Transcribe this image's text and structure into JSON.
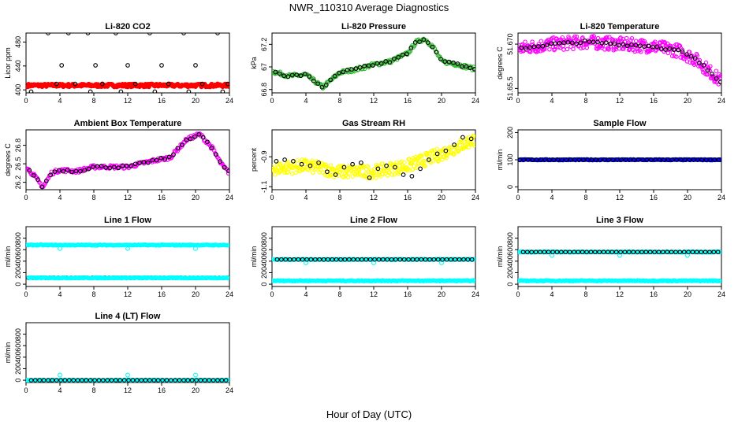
{
  "title": "NWR_110310  Average Diagnostics",
  "xlabel": "Hour of Day (UTC)",
  "chart_data": [
    {
      "type": "scatter",
      "title": "Li-820 CO2",
      "ylabel": "Licor ppm",
      "xlim": [
        0,
        24
      ],
      "ylim": [
        395,
        495
      ],
      "xticks": [
        0,
        4,
        8,
        12,
        16,
        20,
        24
      ],
      "yticks": [
        400,
        440,
        480
      ],
      "series": [
        {
          "color": "#ff0000",
          "pattern": "dense",
          "x": [
            0.2,
            24
          ],
          "y": [
            407.5,
            407.5
          ]
        },
        {
          "color": "#000000",
          "pattern": "avg",
          "x": [
            0.6,
            2.6,
            3.6,
            4.2,
            5.0,
            5.8,
            7.3,
            7.6,
            8.2,
            9.0,
            10.6,
            11.2,
            12.0,
            12.9,
            14.6,
            15.2,
            16.0,
            16.8,
            18.6,
            19.2,
            20.0,
            20.8,
            22.6,
            23.2,
            23.8
          ],
          "y": [
            397,
            495,
            410,
            441,
            495,
            410,
            495,
            397,
            441,
            410,
            495,
            397,
            441,
            410,
            495,
            397,
            441,
            410,
            495,
            397,
            441,
            410,
            495,
            397,
            410
          ]
        }
      ]
    },
    {
      "type": "scatter",
      "title": "Li-820 Pressure",
      "ylabel": "kPa",
      "xlim": [
        0,
        24
      ],
      "ylim": [
        66.77,
        67.3
      ],
      "xticks": [
        0,
        4,
        8,
        12,
        16,
        20,
        24
      ],
      "yticks": [
        66.8,
        67.0,
        67.2
      ],
      "series": [
        {
          "color": "#33bb33",
          "pattern": "curve",
          "x": [
            0,
            2,
            4,
            6,
            8,
            10,
            12,
            14,
            16,
            17,
            18,
            19,
            20,
            22,
            24
          ],
          "y": [
            66.96,
            66.92,
            66.93,
            66.82,
            66.95,
            66.98,
            67.02,
            67.05,
            67.12,
            67.22,
            67.25,
            67.18,
            67.05,
            67.02,
            66.98
          ]
        },
        {
          "color": "#000000",
          "pattern": "avg-curve",
          "x": [
            0,
            2,
            4,
            6,
            8,
            10,
            12,
            14,
            16,
            17,
            18,
            19,
            20,
            22,
            24
          ],
          "y": [
            66.96,
            66.92,
            66.93,
            66.82,
            66.95,
            66.98,
            67.02,
            67.05,
            67.12,
            67.22,
            67.25,
            67.18,
            67.05,
            67.02,
            66.98
          ]
        }
      ]
    },
    {
      "type": "scatter",
      "title": "Li-820 Temperature",
      "ylabel": "degrees C",
      "xlim": [
        0,
        24
      ],
      "ylim": [
        51.648,
        51.675
      ],
      "xticks": [
        0,
        4,
        8,
        12,
        16,
        20,
        24
      ],
      "yticks": [
        51.65,
        51.67
      ],
      "ytick_labels": [
        "51.65.5",
        "51.670"
      ],
      "series": [
        {
          "color": "#ff00ff",
          "pattern": "noisy",
          "x": [
            0,
            4,
            8,
            12,
            16,
            19,
            21,
            24
          ],
          "y": [
            51.668,
            51.67,
            51.671,
            51.67,
            51.669,
            51.667,
            51.663,
            51.653
          ]
        },
        {
          "color": "#000000",
          "pattern": "avg-curve",
          "x": [
            0,
            4,
            8,
            12,
            16,
            19,
            21,
            24
          ],
          "y": [
            51.668,
            51.67,
            51.671,
            51.67,
            51.669,
            51.667,
            51.663,
            51.653
          ]
        }
      ]
    },
    {
      "type": "scatter",
      "title": "Ambient Box Temperature",
      "ylabel": "degrees C",
      "xlim": [
        0,
        24
      ],
      "ylim": [
        26.08,
        27.05
      ],
      "xticks": [
        0,
        4,
        8,
        12,
        16,
        20,
        24
      ],
      "yticks": [
        26.2,
        26.5,
        26.8
      ],
      "series": [
        {
          "color": "#ff00ff",
          "pattern": "curve",
          "x": [
            0,
            1,
            2,
            3,
            4,
            6,
            8,
            12,
            15,
            17,
            19,
            20.5,
            22,
            23,
            24
          ],
          "y": [
            26.45,
            26.3,
            26.12,
            26.35,
            26.4,
            26.38,
            26.45,
            26.45,
            26.55,
            26.6,
            26.9,
            26.98,
            26.75,
            26.5,
            26.35
          ]
        },
        {
          "color": "#000000",
          "pattern": "avg-curve",
          "x": [
            0,
            1,
            2,
            3,
            4,
            6,
            8,
            12,
            15,
            17,
            19,
            20.5,
            22,
            23,
            24
          ],
          "y": [
            26.45,
            26.3,
            26.12,
            26.35,
            26.4,
            26.38,
            26.45,
            26.45,
            26.55,
            26.6,
            26.9,
            26.98,
            26.75,
            26.5,
            26.35
          ]
        }
      ]
    },
    {
      "type": "scatter",
      "title": "Gas Stream RH",
      "ylabel": "percent",
      "xlim": [
        0,
        24
      ],
      "ylim": [
        -1.12,
        -0.72
      ],
      "xticks": [
        0,
        4,
        8,
        12,
        16,
        20,
        24
      ],
      "yticks": [
        -1.1,
        -0.9
      ],
      "ytick_labels": [
        "-1.1",
        "-0.9"
      ],
      "series": [
        {
          "color": "#ffff00",
          "pattern": "noisy",
          "x": [
            0,
            4,
            8,
            12,
            16,
            20,
            24
          ],
          "y": [
            -0.98,
            -0.96,
            -1.0,
            -1.0,
            -0.96,
            -0.88,
            -0.78
          ]
        },
        {
          "color": "#000000",
          "pattern": "avg",
          "x": [
            0.5,
            1.5,
            2.5,
            3.5,
            4.5,
            5.5,
            6.5,
            7.5,
            8.5,
            9.5,
            10.5,
            11.5,
            12.5,
            13.5,
            14.5,
            15.5,
            16.5,
            17.5,
            18.5,
            19.5,
            20.5,
            21.5,
            22.5,
            23.5
          ],
          "y": [
            -0.93,
            -0.92,
            -0.93,
            -0.95,
            -0.96,
            -0.94,
            -1.0,
            -1.02,
            -0.97,
            -0.95,
            -0.94,
            -1.04,
            -0.98,
            -0.96,
            -0.97,
            -1.02,
            -1.03,
            -0.98,
            -0.92,
            -0.88,
            -0.86,
            -0.82,
            -0.77,
            -0.78
          ]
        }
      ]
    },
    {
      "type": "scatter",
      "title": "Sample Flow",
      "ylabel": "ml/min",
      "xlim": [
        0,
        24
      ],
      "ylim": [
        -10,
        210
      ],
      "xticks": [
        0,
        4,
        8,
        12,
        16,
        20,
        24
      ],
      "yticks": [
        0,
        100,
        200
      ],
      "series": [
        {
          "color": "#0000ff",
          "pattern": "flat",
          "x": [
            0.2,
            24
          ],
          "y": [
            100,
            100
          ]
        },
        {
          "color": "#000000",
          "pattern": "flat-avg",
          "x": [
            0.2,
            24
          ],
          "y": [
            100,
            100
          ]
        }
      ]
    },
    {
      "type": "scatter",
      "title": "Line 1 Flow",
      "ylabel": "ml/min",
      "xlim": [
        0,
        24
      ],
      "ylim": [
        -40,
        1000
      ],
      "xticks": [
        0,
        4,
        8,
        12,
        16,
        20,
        24
      ],
      "yticks": [
        0,
        200,
        400,
        600,
        800
      ],
      "series": [
        {
          "color": "#00ffff",
          "pattern": "flat",
          "x": [
            0,
            24
          ],
          "y": [
            680,
            680
          ],
          "dips": [
            [
              4,
              620
            ],
            [
              12,
              620
            ],
            [
              20,
              620
            ]
          ]
        },
        {
          "color": "#000000",
          "pattern": "flat-avg",
          "x": [
            0.3,
            24
          ],
          "y": [
            110,
            110
          ]
        },
        {
          "color": "#00ffff",
          "pattern": "flat",
          "x": [
            0.3,
            24
          ],
          "y": [
            110,
            110
          ]
        }
      ]
    },
    {
      "type": "scatter",
      "title": "Line 2 Flow",
      "ylabel": "ml/min",
      "xlim": [
        0,
        24
      ],
      "ylim": [
        -40,
        1000
      ],
      "xticks": [
        0,
        4,
        8,
        12,
        16,
        20,
        24
      ],
      "yticks": [
        0,
        200,
        400,
        600,
        800
      ],
      "series": [
        {
          "color": "#00ffff",
          "pattern": "flat",
          "x": [
            0,
            24
          ],
          "y": [
            430,
            430
          ],
          "dips": [
            [
              4,
              370
            ],
            [
              12,
              370
            ],
            [
              20,
              370
            ]
          ]
        },
        {
          "color": "#000000",
          "pattern": "flat-avg",
          "x": [
            0.6,
            24
          ],
          "y": [
            430,
            430
          ]
        },
        {
          "color": "#00ffff",
          "pattern": "flat",
          "x": [
            0,
            24
          ],
          "y": [
            60,
            60
          ]
        }
      ]
    },
    {
      "type": "scatter",
      "title": "Line 3 Flow",
      "ylabel": "ml/min",
      "xlim": [
        0,
        24
      ],
      "ylim": [
        -40,
        1000
      ],
      "xticks": [
        0,
        4,
        8,
        12,
        16,
        20,
        24
      ],
      "yticks": [
        0,
        200,
        400,
        600,
        800
      ],
      "series": [
        {
          "color": "#00ffff",
          "pattern": "flat",
          "x": [
            0,
            24
          ],
          "y": [
            560,
            560
          ],
          "dips": [
            [
              4,
              500
            ],
            [
              12,
              500
            ],
            [
              20,
              500
            ]
          ]
        },
        {
          "color": "#000000",
          "pattern": "flat-avg",
          "x": [
            0.6,
            24
          ],
          "y": [
            560,
            560
          ]
        },
        {
          "color": "#00ffff",
          "pattern": "flat",
          "x": [
            0,
            24
          ],
          "y": [
            60,
            60
          ]
        }
      ]
    },
    {
      "type": "scatter",
      "title": "Line 4 (LT) Flow",
      "ylabel": "ml/min",
      "xlim": [
        0,
        24
      ],
      "ylim": [
        -40,
        1000
      ],
      "xticks": [
        0,
        4,
        8,
        12,
        16,
        20,
        24
      ],
      "yticks": [
        0,
        200,
        400,
        600,
        800
      ],
      "series": [
        {
          "color": "#00ffff",
          "pattern": "flat",
          "x": [
            0,
            24
          ],
          "y": [
            0,
            0
          ],
          "dips": [
            [
              4,
              90
            ],
            [
              12,
              90
            ],
            [
              20,
              90
            ]
          ]
        },
        {
          "color": "#000000",
          "pattern": "flat-avg",
          "x": [
            0.6,
            24
          ],
          "y": [
            0,
            0
          ]
        }
      ]
    }
  ]
}
